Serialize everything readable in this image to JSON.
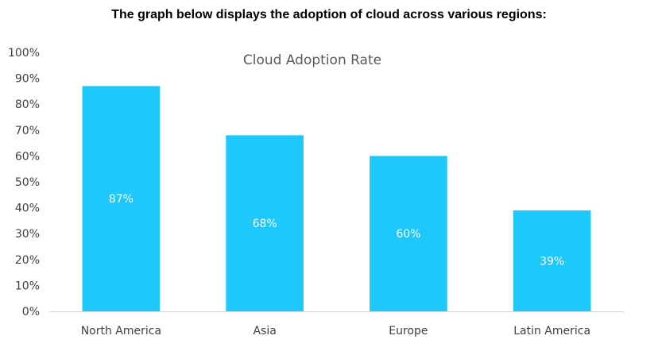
{
  "intro_text": "The graph below displays the adoption of cloud across various regions:",
  "chart_data": {
    "type": "bar",
    "title": "Cloud Adoption Rate",
    "categories": [
      "North America",
      "Asia",
      "Europe",
      "Latin America"
    ],
    "values": [
      87,
      68,
      60,
      39
    ],
    "data_labels": [
      "87%",
      "68%",
      "60%",
      "39%"
    ],
    "y_ticks": [
      "0%",
      "10%",
      "20%",
      "30%",
      "40%",
      "50%",
      "60%",
      "70%",
      "80%",
      "90%",
      "100%"
    ],
    "ylim": [
      0,
      100
    ],
    "xlabel": "",
    "ylabel": "",
    "grid": false,
    "legend": "none",
    "bar_color": "#1ec8fa",
    "axis_color": "#d9d9d9"
  }
}
